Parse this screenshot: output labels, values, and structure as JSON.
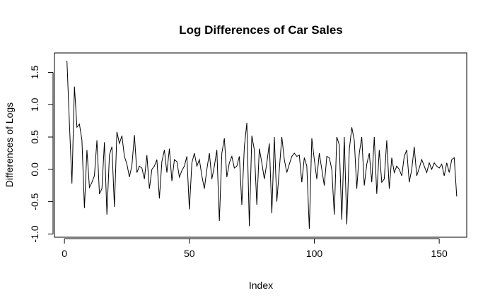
{
  "chart_data": {
    "type": "line",
    "title": "Log Differences of Car Sales",
    "xlabel": "Index",
    "ylabel": "Differences of Logs",
    "xlim": [
      -4,
      161
    ],
    "ylim": [
      -1.05,
      1.8
    ],
    "xticks": [
      0,
      50,
      100,
      150
    ],
    "yticks": [
      -1.0,
      -0.5,
      0.0,
      0.5,
      1.0,
      1.5
    ],
    "ytick_labels": [
      "-1.0",
      "-0.5",
      "0.0",
      "0.5",
      "1.0",
      "1.5"
    ],
    "line_color": "#000000",
    "grid": false,
    "legend": "none",
    "x": [
      1,
      2,
      3,
      4,
      5,
      6,
      7,
      8,
      9,
      10,
      11,
      12,
      13,
      14,
      15,
      16,
      17,
      18,
      19,
      20,
      21,
      22,
      23,
      24,
      25,
      26,
      27,
      28,
      29,
      30,
      31,
      32,
      33,
      34,
      35,
      36,
      37,
      38,
      39,
      40,
      41,
      42,
      43,
      44,
      45,
      46,
      47,
      48,
      49,
      50,
      51,
      52,
      53,
      54,
      55,
      56,
      57,
      58,
      59,
      60,
      61,
      62,
      63,
      64,
      65,
      66,
      67,
      68,
      69,
      70,
      71,
      72,
      73,
      74,
      75,
      76,
      77,
      78,
      79,
      80,
      81,
      82,
      83,
      84,
      85,
      86,
      87,
      88,
      89,
      90,
      91,
      92,
      93,
      94,
      95,
      96,
      97,
      98,
      99,
      100,
      101,
      102,
      103,
      104,
      105,
      106,
      107,
      108,
      109,
      110,
      111,
      112,
      113,
      114,
      115,
      116,
      117,
      118,
      119,
      120,
      121,
      122,
      123,
      124,
      125,
      126,
      127,
      128,
      129,
      130,
      131,
      132,
      133,
      134,
      135,
      136,
      137,
      138,
      139,
      140,
      141,
      142,
      143,
      144,
      145,
      146,
      147,
      148,
      149,
      150,
      151,
      152,
      153,
      154,
      155,
      156,
      157
    ],
    "y": [
      1.68,
      0.7,
      -0.22,
      1.28,
      0.65,
      0.7,
      0.45,
      -0.6,
      0.3,
      -0.28,
      -0.2,
      -0.1,
      0.45,
      -0.38,
      -0.3,
      0.42,
      -0.7,
      0.22,
      0.35,
      -0.58,
      0.58,
      0.4,
      0.52,
      0.2,
      0.08,
      -0.12,
      0.06,
      0.53,
      -0.05,
      0.05,
      0.02,
      -0.15,
      0.22,
      -0.3,
      0.0,
      0.05,
      0.15,
      -0.45,
      0.12,
      0.3,
      -0.05,
      0.32,
      -0.18,
      0.15,
      0.12,
      -0.12,
      -0.02,
      0.05,
      0.2,
      -0.62,
      0.1,
      0.25,
      0.05,
      0.15,
      -0.1,
      -0.3,
      0.0,
      0.25,
      -0.15,
      0.05,
      0.3,
      -0.8,
      0.25,
      0.48,
      -0.12,
      0.1,
      0.2,
      0.02,
      0.05,
      0.2,
      -0.55,
      0.35,
      0.72,
      -0.88,
      0.52,
      0.3,
      -0.55,
      0.32,
      0.1,
      -0.15,
      0.1,
      0.4,
      -0.68,
      0.5,
      -0.5,
      0.0,
      0.5,
      0.15,
      -0.05,
      0.08,
      0.2,
      0.25,
      0.2,
      0.22,
      -0.2,
      0.18,
      0.05,
      -0.92,
      0.48,
      0.15,
      -0.15,
      0.25,
      0.0,
      -0.25,
      0.2,
      0.18,
      0.0,
      -0.7,
      0.5,
      0.38,
      -0.78,
      0.5,
      -0.85,
      0.3,
      0.65,
      0.45,
      -0.3,
      0.25,
      0.5,
      -0.25,
      0.08,
      0.25,
      -0.2,
      0.5,
      -0.38,
      0.3,
      -0.2,
      -0.15,
      0.45,
      -0.3,
      0.18,
      -0.05,
      0.05,
      0.0,
      -0.1,
      0.2,
      0.3,
      -0.2,
      0.0,
      0.35,
      -0.1,
      0.02,
      0.15,
      0.05,
      -0.05,
      0.1,
      0.0,
      0.1,
      0.05,
      0.02,
      0.08,
      -0.1,
      0.1,
      -0.05,
      0.15,
      0.18,
      -0.42
    ]
  }
}
